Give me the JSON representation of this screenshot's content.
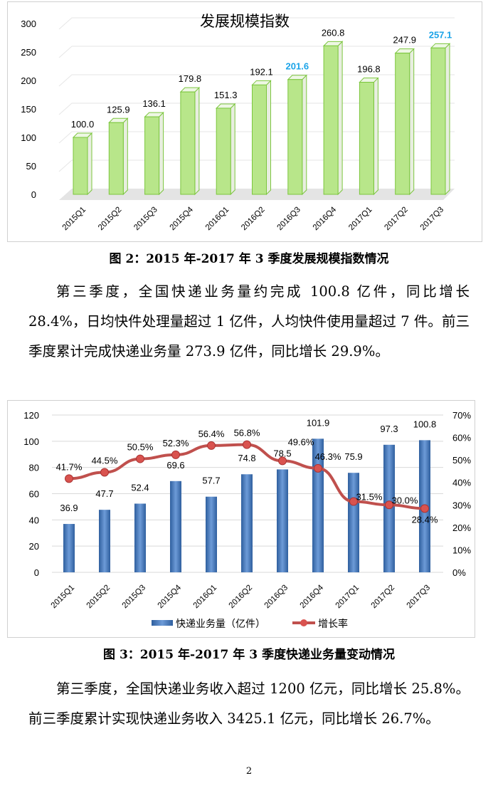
{
  "chart_data": [
    {
      "type": "bar",
      "title": "发展规模指数",
      "categories": [
        "2015Q1",
        "2015Q2",
        "2015Q3",
        "2015Q4",
        "2016Q1",
        "2016Q2",
        "2016Q3",
        "2016Q4",
        "2017Q1",
        "2017Q2",
        "2017Q3"
      ],
      "values": [
        100.0,
        125.9,
        136.1,
        179.8,
        151.3,
        192.1,
        201.6,
        260.8,
        196.8,
        247.9,
        257.1
      ],
      "labels": [
        "100.0",
        "125.9",
        "136.1",
        "179.8",
        "151.3",
        "192.1",
        "201.6",
        "260.8",
        "196.8",
        "247.9",
        "257.1"
      ],
      "highlighted": [
        "2016Q3",
        "2017Q3"
      ],
      "yticks": [
        "0",
        "50",
        "100",
        "150",
        "200",
        "250",
        "300"
      ],
      "ylim": [
        0,
        300
      ],
      "grid": true,
      "colors": {
        "bar": "#b8e68a",
        "edge": "#7cc63e",
        "highlight_label": "#1aa3e8"
      }
    },
    {
      "type": "bar+line",
      "categories": [
        "2015Q1",
        "2015Q2",
        "2015Q3",
        "2015Q4",
        "2016Q1",
        "2016Q2",
        "2016Q3",
        "2016Q4",
        "2017Q1",
        "2017Q2",
        "2017Q3"
      ],
      "series": [
        {
          "name": "快递业务量（亿件）",
          "type": "bar",
          "axis": "left",
          "values": [
            36.9,
            47.7,
            52.4,
            69.6,
            57.7,
            74.8,
            78.5,
            101.9,
            75.9,
            97.3,
            100.8
          ],
          "labels": [
            "36.9",
            "47.7",
            "52.4",
            "69.6",
            "57.7",
            "74.8",
            "78.5",
            "101.9",
            "75.9",
            "97.3",
            "100.8"
          ]
        },
        {
          "name": "增长率",
          "type": "line",
          "axis": "right",
          "values": [
            41.7,
            44.5,
            50.5,
            52.3,
            56.4,
            56.8,
            49.6,
            46.3,
            31.5,
            30.0,
            28.4
          ],
          "labels": [
            "41.7%",
            "44.5%",
            "50.5%",
            "52.3%",
            "56.4%",
            "56.8%",
            "49.6%",
            "46.3%",
            "31.5%",
            "30.0%",
            "28.4%"
          ]
        }
      ],
      "yticks_left": [
        "0",
        "20",
        "40",
        "60",
        "80",
        "100",
        "120"
      ],
      "ylim_left": [
        0,
        120
      ],
      "yticks_right": [
        "0%",
        "10%",
        "20%",
        "30%",
        "40%",
        "50%",
        "60%",
        "70%"
      ],
      "ylim_right": [
        0,
        70
      ],
      "legend": "bottom",
      "grid": true,
      "colors": {
        "bar": "#4a7ebb",
        "line": "#c0504d"
      }
    }
  ],
  "captions": {
    "fig2": "图 2：2015 年-2017 年 3 季度发展规模指数情况",
    "fig3": "图 3：2015 年-2017 年 3 季度快递业务量变动情况"
  },
  "paragraphs": [
    "第三季度，全国快递业务量约完成 100.8 亿件，同比增长 28.4%，日均快件处理量超过 1 亿件，人均快件使用量超过 7 件。前三季度累计完成快递业务量 273.9 亿件，同比增长 29.9%。",
    "第三季度，全国快递业务收入超过 1200 亿元，同比增长 25.8%。前三季度累计实现快递业务收入 3425.1 亿元，同比增长 26.7%。"
  ],
  "page_number": "2"
}
